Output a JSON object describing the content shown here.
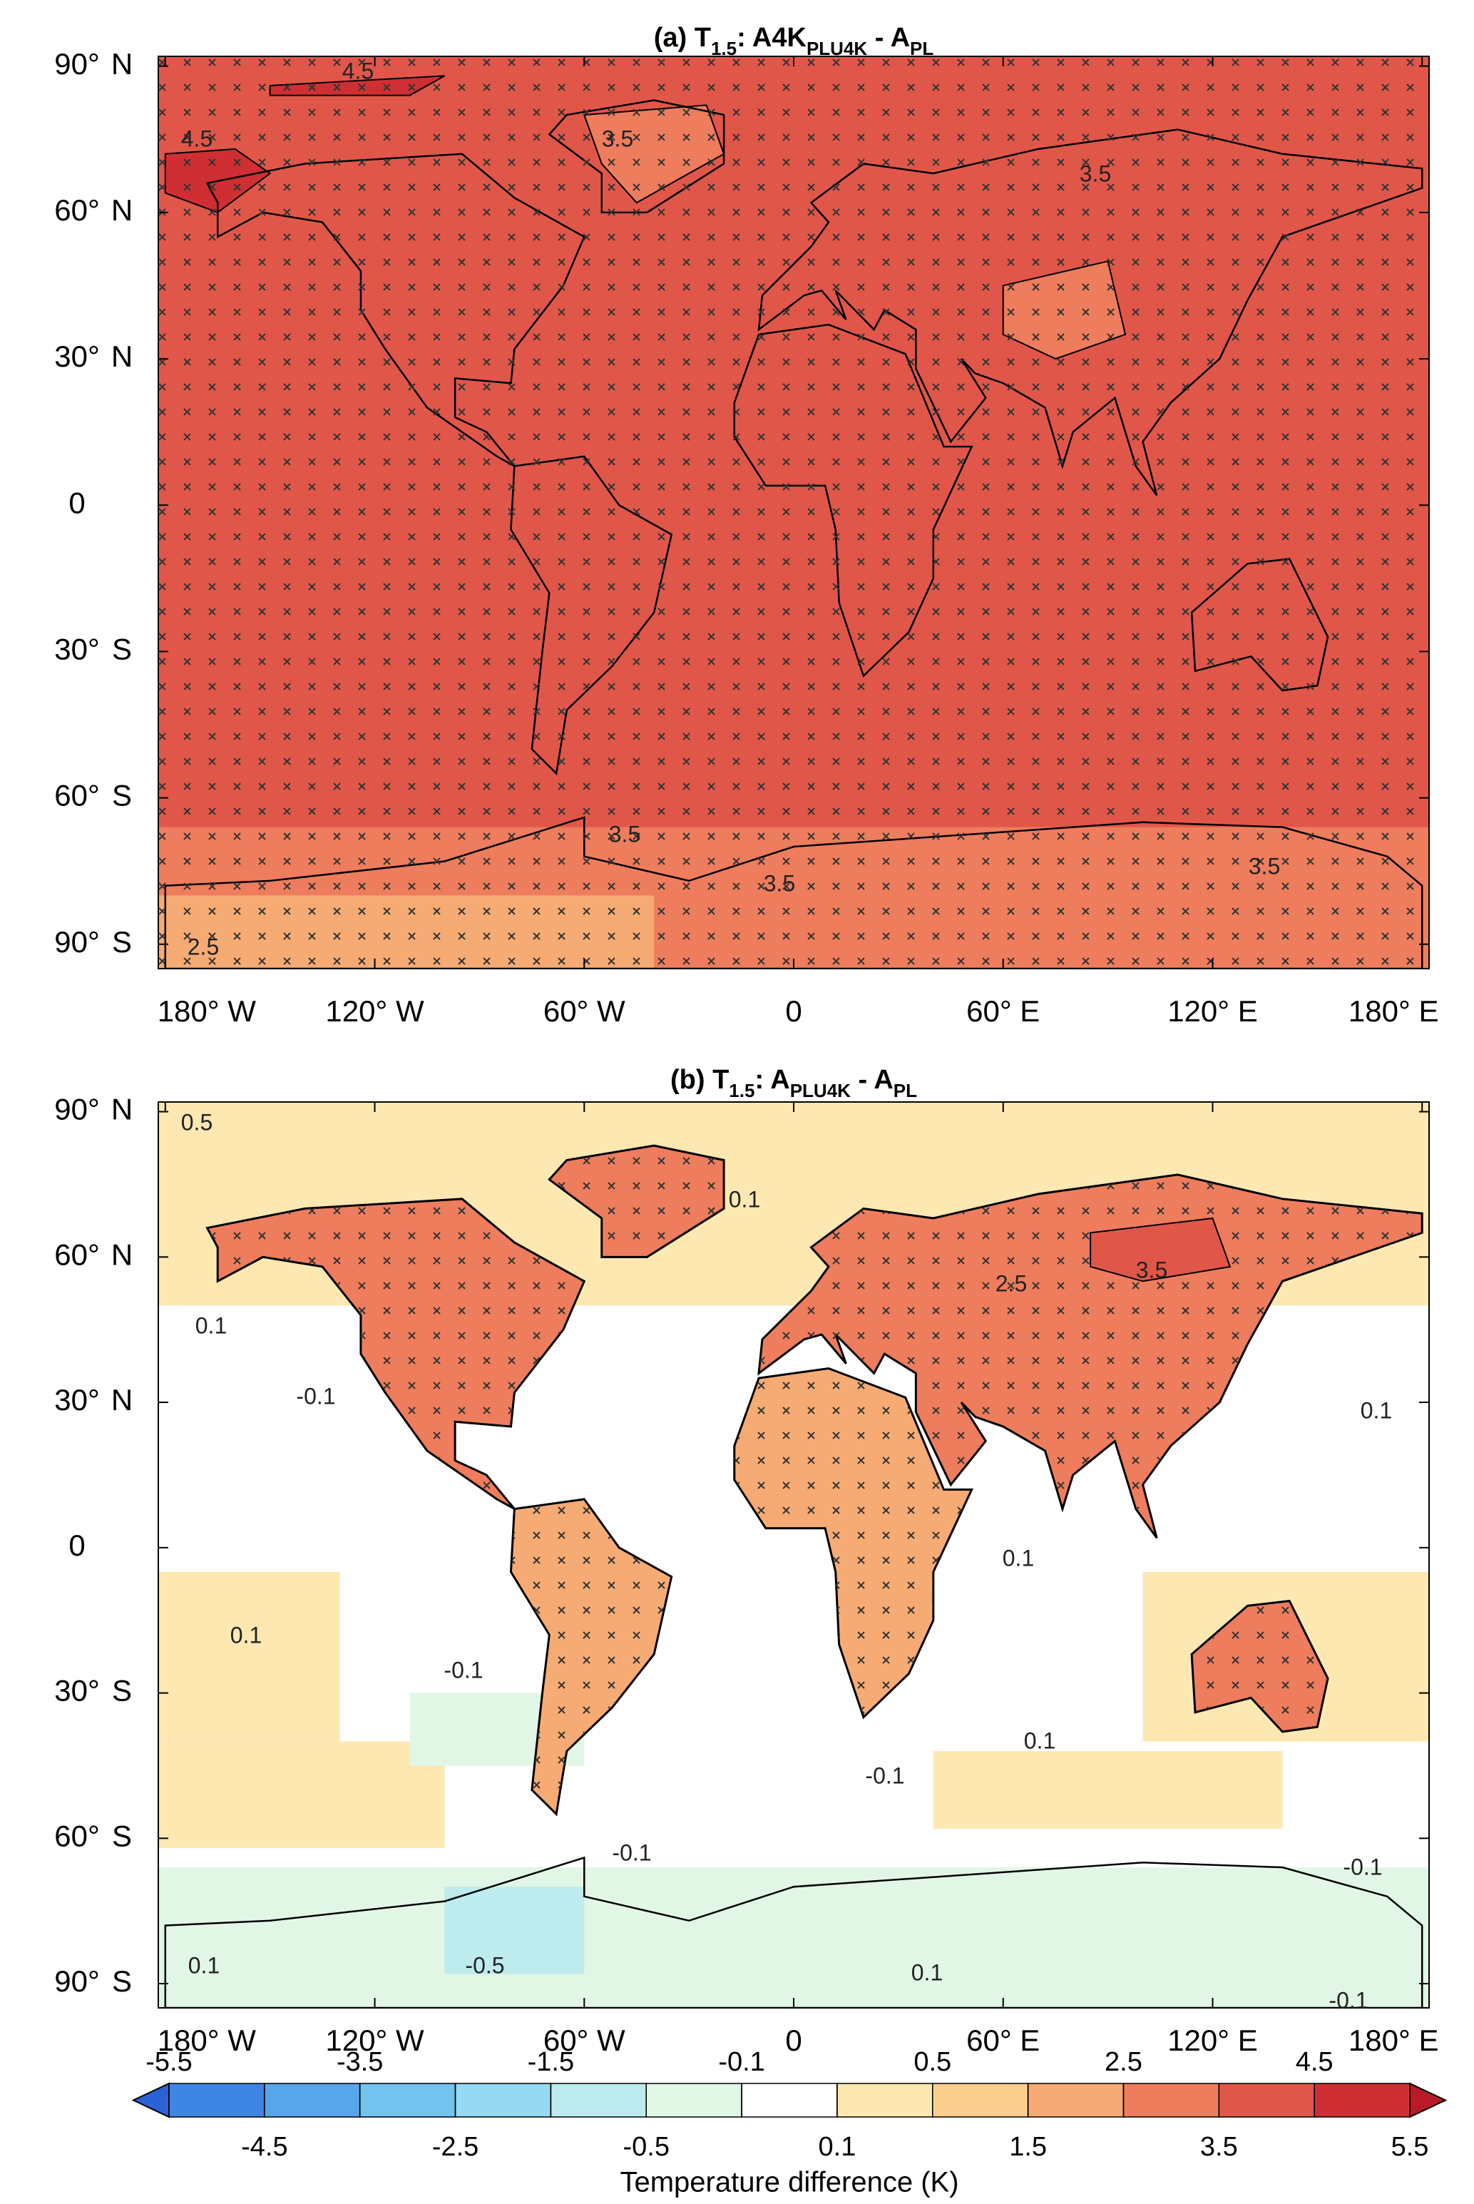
{
  "maps": {
    "lonlim": [
      -182,
      182
    ],
    "latlim": [
      -95,
      92
    ],
    "lat_ticks": [
      {
        "value": 90,
        "label": "90°",
        "suffix": "N"
      },
      {
        "value": 60,
        "label": "60°",
        "suffix": "N"
      },
      {
        "value": 30,
        "label": "30°",
        "suffix": "N"
      },
      0,
      {
        "value": -30,
        "label": "30°",
        "suffix": "S"
      },
      {
        "value": -60,
        "label": "60°",
        "suffix": "S"
      },
      {
        "value": -90,
        "label": "90°",
        "suffix": "S"
      }
    ],
    "lon_ticks": [
      {
        "value": -180,
        "label": "180° W"
      },
      {
        "value": -120,
        "label": "120° W"
      },
      {
        "value": -60,
        "label": "60° W"
      },
      0,
      {
        "value": 60,
        "label": "60° E"
      },
      {
        "value": 120,
        "label": "120° E"
      },
      {
        "value": 180,
        "label": "180° E"
      }
    ],
    "panels": [
      {
        "title_parts": [
          "(a) T",
          "1.5",
          ": A4K",
          "PLU4K",
          " - A",
          "PL"
        ],
        "contour_labels": [
          4.5,
          4.5,
          3.5,
          3.5,
          3.5,
          3.5,
          3.5,
          2.5
        ]
      },
      {
        "title_parts": [
          "(b) T",
          "1.5",
          ": A",
          "PLU4K",
          " - A",
          "PL"
        ],
        "contour_labels": [
          0.5,
          0.1,
          2.5,
          3.5,
          0.1,
          -0.1,
          0.1,
          0.1,
          0.1,
          -0.1,
          0.1,
          -0.1,
          -0.1,
          -0.1,
          -0.5,
          0.1,
          0.1,
          -0.1
        ]
      }
    ],
    "colorbar": {
      "label": "Temperature difference (K)",
      "levels": [
        -5.5,
        -4.5,
        -3.5,
        -2.5,
        -1.5,
        -0.5,
        -0.1,
        0.1,
        0.5,
        1.5,
        2.5,
        3.5,
        4.5,
        5.5
      ],
      "colors": [
        "#2b62d6",
        "#3f86e4",
        "#58a6ea",
        "#74c2ee",
        "#95daf0",
        "#bdebee",
        "#e2f6e6",
        "#ffffff",
        "#fde8b2",
        "#fbd08f",
        "#f6ab74",
        "#ee7d5d",
        "#e0574a",
        "#cf2f33",
        "#b81b27"
      ]
    }
  }
}
